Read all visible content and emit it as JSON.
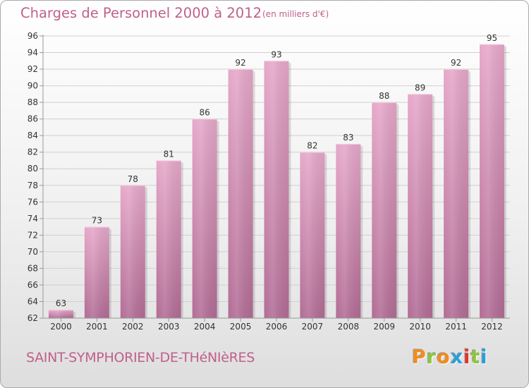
{
  "header": {
    "title": "Charges de Personnel 2000 à 2012",
    "subtitle": "(en milliers d'€)"
  },
  "footer": {
    "city": "SAINT-SYMPHORIEN-DE-THéNIèRES",
    "logo": "Proxiti"
  },
  "colors": {
    "accent": "#c0608a",
    "bar_light": "#e6a8c9",
    "bar_dark": "#b26c95",
    "logo_letters": [
      "#f28c1e",
      "#8cc63f",
      "#f28c1e",
      "#2a9fd8",
      "#e6332a",
      "#8cc63f",
      "#2a9fd8"
    ]
  },
  "chart_data": {
    "type": "bar",
    "title": "Charges de Personnel 2000 à 2012",
    "subtitle": "(en milliers d'€)",
    "categories": [
      "2000",
      "2001",
      "2002",
      "2003",
      "2004",
      "2005",
      "2006",
      "2007",
      "2008",
      "2009",
      "2010",
      "2011",
      "2012"
    ],
    "values": [
      63,
      73,
      78,
      81,
      86,
      92,
      93,
      82,
      83,
      88,
      89,
      92,
      95
    ],
    "ylim": [
      62,
      96
    ],
    "yticks": [
      62,
      64,
      66,
      68,
      70,
      72,
      74,
      76,
      78,
      80,
      82,
      84,
      86,
      88,
      90,
      92,
      94,
      96
    ],
    "grid": true,
    "data_labels": true
  }
}
